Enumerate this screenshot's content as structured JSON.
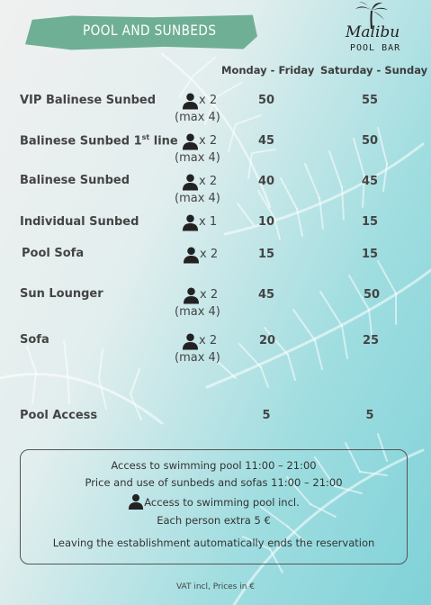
{
  "header": {
    "title": "POOL AND SUNBEDS",
    "logo_script": "Malibu",
    "logo_sub": "POOL BAR"
  },
  "columns": {
    "weekday": "Monday - Friday",
    "weekend": "Saturday - Sunday"
  },
  "rows": [
    {
      "name": "VIP Balinese Sunbed",
      "capacity": "x 2",
      "max": "(max 4)",
      "weekday": "50",
      "weekend": "55"
    },
    {
      "name": "Balinese Sunbed 1",
      "name_sup": "st",
      "name_suffix": " line",
      "capacity": "x 2",
      "max": "(max 4)",
      "weekday": "45",
      "weekend": "50"
    },
    {
      "name": "Balinese Sunbed",
      "capacity": "x 2",
      "max": "(max 4)",
      "weekday": "40",
      "weekend": "45"
    },
    {
      "name": "Individual Sunbed",
      "capacity": "x 1",
      "weekday": "10",
      "weekend": "15"
    },
    {
      "name": "Pool Sofa",
      "capacity": "x 2",
      "weekday": "15",
      "weekend": "15"
    },
    {
      "name": "Sun Lounger",
      "capacity": "x 2",
      "max": "(max 4)",
      "weekday": "45",
      "weekend": "50"
    },
    {
      "name": "Sofa",
      "capacity": "x 2",
      "max": "(max 4)",
      "weekday": "20",
      "weekend": "25"
    },
    {
      "name": "Pool Access",
      "weekday": "5",
      "weekend": "5"
    }
  ],
  "info": {
    "line1": "Access to swimming pool 11:00 – 21:00",
    "line2": "Price and use of sunbeds and sofas 11:00 – 21:00",
    "line3": "Access to swimming pool incl.",
    "line4": "Each person extra 5 €",
    "line5": "Leaving the establishment automatically ends the reservation"
  },
  "footer": "VAT incl, Prices in €",
  "icons": {
    "person": "person-icon",
    "palm": "palm-tree-icon"
  },
  "colors": {
    "accent": "#6faf95",
    "text": "#3d3d3d",
    "background_teal": "#7fd2d8"
  }
}
